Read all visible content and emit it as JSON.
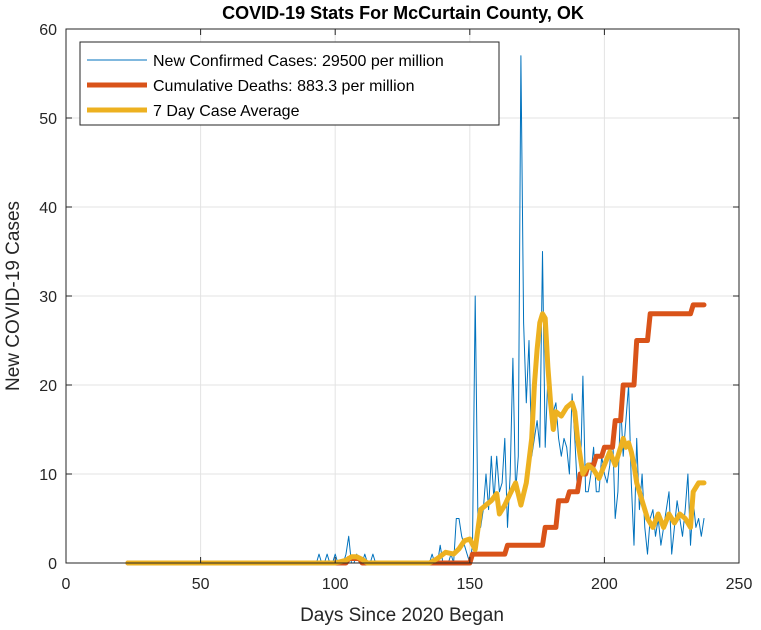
{
  "chart_data": {
    "type": "line",
    "title": "COVID-19 Stats For McCurtain County, OK",
    "xlabel": "Days Since 2020 Began",
    "ylabel": "New COVID-19 Cases",
    "xlim": [
      0,
      250
    ],
    "ylim": [
      0,
      60
    ],
    "xticks": [
      0,
      50,
      100,
      150,
      200,
      250
    ],
    "yticks": [
      0,
      10,
      20,
      30,
      40,
      50,
      60
    ],
    "xtick_labels": [
      "0",
      "50",
      "100",
      "150",
      "200",
      "250"
    ],
    "ytick_labels": [
      "0",
      "10",
      "20",
      "30",
      "40",
      "50",
      "60"
    ],
    "grid": true,
    "legend_position": "top-left",
    "series": [
      {
        "name": "New Confirmed Cases: 29500 per million",
        "color": "#0072BD",
        "style": "thin",
        "x": [
          23,
          93,
          94,
          95,
          96,
          97,
          98,
          99,
          100,
          101,
          102,
          103,
          104,
          105,
          106,
          107,
          108,
          109,
          110,
          111,
          112,
          113,
          114,
          115,
          116,
          117,
          118,
          119,
          120,
          121,
          122,
          123,
          124,
          125,
          126,
          127,
          128,
          129,
          130,
          131,
          132,
          133,
          134,
          135,
          136,
          137,
          138,
          139,
          140,
          141,
          142,
          143,
          144,
          145,
          146,
          147,
          148,
          149,
          150,
          151,
          152,
          153,
          154,
          155,
          156,
          157,
          158,
          159,
          160,
          161,
          162,
          163,
          164,
          165,
          166,
          167,
          168,
          169,
          170,
          171,
          172,
          173,
          174,
          175,
          176,
          177,
          178,
          179,
          180,
          181,
          182,
          183,
          184,
          185,
          186,
          187,
          188,
          189,
          190,
          191,
          192,
          193,
          194,
          195,
          196,
          197,
          198,
          199,
          200,
          201,
          202,
          203,
          204,
          205,
          206,
          207,
          208,
          209,
          210,
          211,
          212,
          213,
          214,
          215,
          216,
          217,
          218,
          219,
          220,
          221,
          222,
          223,
          224,
          225,
          226,
          227,
          228,
          229,
          230,
          231,
          232,
          233,
          234,
          235,
          236,
          237
        ],
        "y": [
          0,
          0,
          1,
          0,
          0,
          1,
          0,
          0,
          1,
          0,
          0,
          0,
          1,
          3,
          0,
          0,
          1,
          0,
          0,
          1,
          0,
          0,
          1,
          0,
          0,
          0,
          0,
          0,
          0,
          0,
          0,
          0,
          0,
          0,
          0,
          0,
          0,
          0,
          0,
          0,
          0,
          0,
          0,
          0,
          1,
          0,
          0,
          2,
          0,
          0,
          0,
          1,
          0,
          5,
          5,
          3,
          2,
          1,
          0,
          2,
          30,
          5,
          4,
          6,
          10,
          6,
          12,
          7,
          12,
          8,
          9,
          14,
          4,
          10,
          23,
          8,
          12,
          57,
          27,
          18,
          25,
          12,
          14,
          16,
          13,
          35,
          13,
          21,
          16,
          17,
          18,
          14,
          12,
          14,
          13,
          10,
          19,
          14,
          8,
          9,
          21,
          8,
          8,
          10,
          13,
          8,
          8,
          12,
          10,
          9,
          11,
          15,
          5,
          8,
          18,
          12,
          16,
          20,
          9,
          2,
          14,
          6,
          10,
          4,
          1,
          5,
          6,
          3,
          5,
          2,
          4,
          6,
          8,
          1,
          4,
          7,
          5,
          3,
          6,
          10,
          2,
          7,
          4,
          5,
          3,
          5
        ],
        "y_note": ""
      },
      {
        "name": "Cumulative Deaths: 883.3 per million",
        "color": "#D95319",
        "style": "thick",
        "x": [
          23,
          104,
          105,
          109,
          110,
          150,
          151,
          163,
          164,
          177,
          178,
          182,
          183,
          186,
          187,
          190,
          191,
          193,
          194,
          196,
          197,
          199,
          200,
          203,
          204,
          206,
          207,
          211,
          212,
          216,
          217,
          219,
          220,
          232,
          233,
          237
        ],
        "y": [
          0,
          0,
          0.5,
          0.5,
          0,
          0,
          1,
          1,
          2,
          2,
          4,
          4,
          7,
          7,
          8,
          8,
          10,
          10,
          11,
          11,
          12,
          12,
          13,
          13,
          16,
          16,
          20,
          20,
          25,
          25,
          28,
          28,
          28,
          28,
          29,
          29
        ]
      },
      {
        "name": "7 Day Case Average",
        "color": "#EDB120",
        "style": "thick",
        "x": [
          23,
          100,
          104,
          106,
          108,
          110,
          112,
          120,
          135,
          138,
          141,
          144,
          146,
          148,
          150,
          152,
          154,
          156,
          158,
          160,
          161,
          163,
          165,
          167,
          169,
          171,
          173,
          174,
          175,
          176,
          177,
          178,
          179,
          180,
          181,
          182,
          184,
          186,
          188,
          189,
          190,
          192,
          194,
          196,
          198,
          200,
          202,
          204,
          206,
          207,
          208,
          209,
          210,
          211,
          212,
          214,
          216,
          218,
          220,
          222,
          224,
          226,
          228,
          230,
          232,
          233,
          235,
          237
        ],
        "y": [
          0,
          0,
          0.3,
          0.7,
          0.7,
          0.4,
          0,
          0,
          0,
          0.5,
          1.2,
          1,
          1.6,
          2.5,
          2.7,
          1.5,
          6,
          6.5,
          7,
          7.8,
          5.5,
          6.5,
          7.8,
          9,
          6.5,
          9,
          14,
          20,
          24,
          27,
          28,
          27.5,
          22,
          18,
          15,
          17,
          16.5,
          17.5,
          18,
          17,
          14,
          10,
          11,
          10.5,
          9.5,
          11,
          12.5,
          11,
          13,
          14,
          13,
          13.5,
          12.5,
          11,
          9,
          7,
          5,
          4,
          5.5,
          4,
          5.5,
          4.5,
          5.5,
          5,
          4,
          8,
          9,
          9
        ]
      }
    ]
  }
}
